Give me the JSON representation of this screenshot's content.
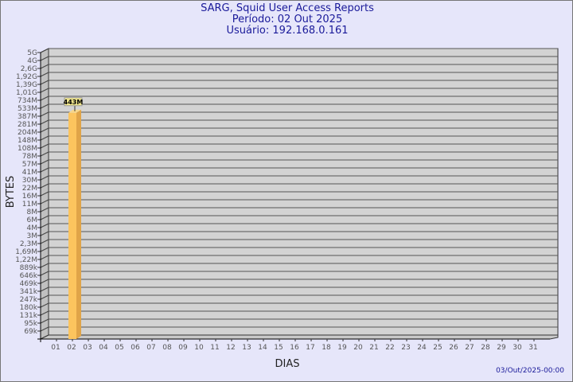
{
  "header": {
    "title": "SARG, Squid User Access Reports",
    "period": "Período: 02 Out 2025",
    "user": "Usuário: 192.168.0.161"
  },
  "footer": {
    "timestamp": "03/Out/2025-00:00"
  },
  "colors": {
    "background": "#e6e6fa",
    "plot": "#d3d3d3",
    "bar": "#fcc45e",
    "bar_side": "#e0a448",
    "title": "#1a1a9a"
  },
  "chart_data": {
    "type": "bar",
    "xlabel": "DIAS",
    "ylabel": "BYTES",
    "y_scale": "log",
    "y_ticks": [
      "5G",
      "4G",
      "2,6G",
      "1,92G",
      "1,39G",
      "1,01G",
      "734M",
      "533M",
      "387M",
      "281M",
      "204M",
      "148M",
      "108M",
      "78M",
      "57M",
      "41M",
      "30M",
      "22M",
      "16M",
      "11M",
      "8M",
      "6M",
      "4M",
      "3M",
      "2,3M",
      "1,69M",
      "1,22M",
      "889k",
      "646k",
      "469k",
      "341k",
      "247k",
      "180k",
      "131k",
      "95k",
      "69k"
    ],
    "categories": [
      "01",
      "02",
      "03",
      "04",
      "05",
      "06",
      "07",
      "08",
      "09",
      "10",
      "11",
      "12",
      "13",
      "14",
      "15",
      "16",
      "17",
      "18",
      "19",
      "20",
      "21",
      "22",
      "23",
      "24",
      "25",
      "26",
      "27",
      "28",
      "29",
      "30",
      "31"
    ],
    "values": [
      0,
      443000000,
      0,
      0,
      0,
      0,
      0,
      0,
      0,
      0,
      0,
      0,
      0,
      0,
      0,
      0,
      0,
      0,
      0,
      0,
      0,
      0,
      0,
      0,
      0,
      0,
      0,
      0,
      0,
      0,
      0
    ],
    "data_labels": {
      "02": "443M"
    },
    "grid": true
  }
}
